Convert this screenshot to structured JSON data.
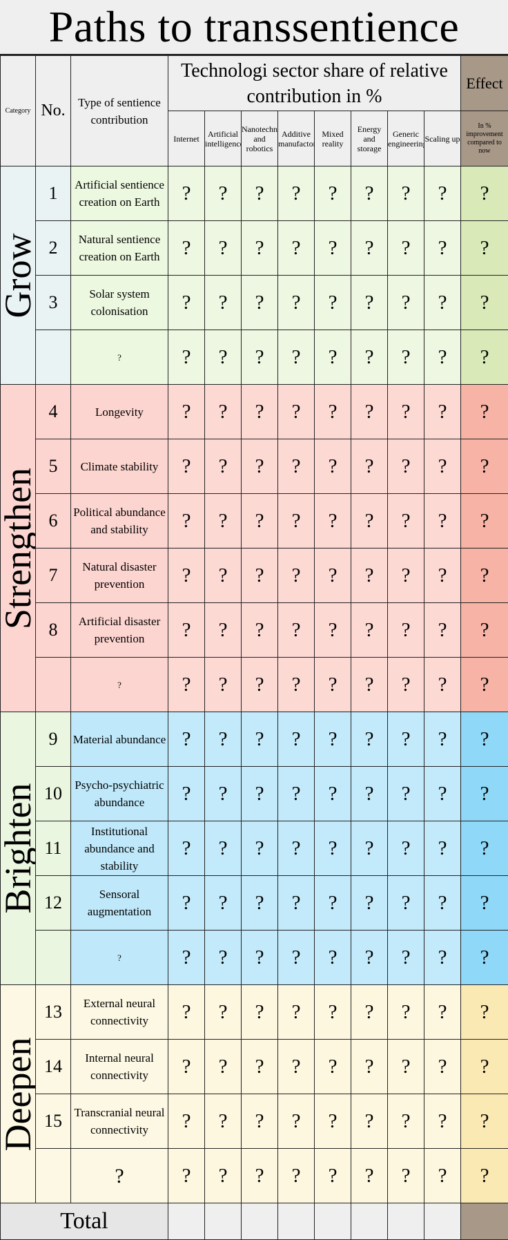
{
  "title": "Paths to transsentience",
  "header": {
    "category": "Category",
    "number": "No.",
    "type": "Type of sentience contribution",
    "tech_share": "Technologi sector share of relative contribution in %",
    "effect": "Effect",
    "effect_sub": "In % improvement compared to now",
    "sectors": [
      "Internet",
      "Artificial intelligence",
      "Nanotechnology and robotics",
      "Additive manufactoring",
      "Mixed reality",
      "Energy and storage",
      "Generic engineering",
      "Scaling up"
    ]
  },
  "groups": [
    {
      "name": "Grow",
      "rows": [
        {
          "no": "1",
          "type": "Artificial sentience creation on Earth"
        },
        {
          "no": "2",
          "type": "Natural sentience creation on Earth"
        },
        {
          "no": "3",
          "type": "Solar system colonisation"
        },
        {
          "no": "",
          "type": "?"
        }
      ]
    },
    {
      "name": "Strengthen",
      "rows": [
        {
          "no": "4",
          "type": "Longevity"
        },
        {
          "no": "5",
          "type": "Climate stability"
        },
        {
          "no": "6",
          "type": "Political abundance and stability"
        },
        {
          "no": "7",
          "type": "Natural disaster prevention"
        },
        {
          "no": "8",
          "type": "Artificial disaster prevention"
        },
        {
          "no": "",
          "type": "?"
        }
      ]
    },
    {
      "name": "Brighten",
      "rows": [
        {
          "no": "9",
          "type": "Material abundance"
        },
        {
          "no": "10",
          "type": "Psycho-psychiatric abundance"
        },
        {
          "no": "11",
          "type": "Institutional abundance and stability"
        },
        {
          "no": "12",
          "type": "Sensoral augmentation"
        },
        {
          "no": "",
          "type": "?"
        }
      ]
    },
    {
      "name": "Deepen",
      "rows": [
        {
          "no": "13",
          "type": "External neural connectivity"
        },
        {
          "no": "14",
          "type": "Internal neural connectivity"
        },
        {
          "no": "15",
          "type": "Transcranial neural connectivity"
        },
        {
          "no": "",
          "type": "?"
        }
      ]
    }
  ],
  "cell_value": "?",
  "total_label": "Total",
  "colors": {
    "grow": {
      "cat": "#eaf3f3",
      "num": "#eaf3f3",
      "type": "#edf8e0",
      "data": "#eef7e2",
      "effect": "#d9eab8"
    },
    "strengthen": {
      "cat": "#fdd5d0",
      "num": "#fdd5d0",
      "type": "#fdd5d0",
      "data": "#fdd9d4",
      "effect": "#f7b3a6"
    },
    "brighten": {
      "cat": "#eaf6e0",
      "num": "#eaf6e0",
      "type": "#bfe9fb",
      "data": "#c3eafb",
      "effect": "#8fd8f8"
    },
    "deepen": {
      "cat": "#fdf8e3",
      "num": "#fdf8e3",
      "type": "#fdf8e3",
      "data": "#fdf7e0",
      "effect": "#fbe9b3"
    }
  }
}
